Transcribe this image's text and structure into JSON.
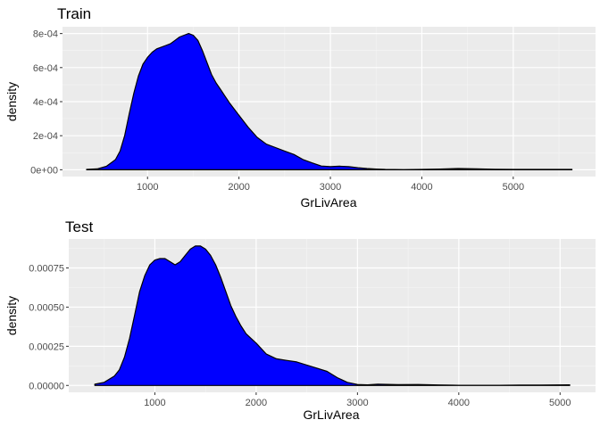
{
  "chart_data": [
    {
      "type": "area",
      "title": "Train",
      "xlabel": "GrLivArea",
      "ylabel": "density",
      "xlim": [
        70,
        5900
      ],
      "ylim": [
        -4e-05,
        0.00084
      ],
      "x_ticks": [
        1000,
        2000,
        3000,
        4000,
        5000
      ],
      "x_tick_labels": [
        "1000",
        "2000",
        "3000",
        "4000",
        "5000"
      ],
      "y_ticks": [
        0,
        0.0002,
        0.0004,
        0.0006,
        0.0008
      ],
      "y_tick_labels": [
        "0e+00",
        "2e-04",
        "4e-04",
        "6e-04",
        "8e-04"
      ],
      "grid": true,
      "fill_color": "#0000ff",
      "line_color": "#000000",
      "panel_color": "#ebebeb",
      "x": [
        334,
        450,
        550,
        650,
        700,
        750,
        800,
        850,
        900,
        950,
        1000,
        1050,
        1100,
        1150,
        1200,
        1250,
        1300,
        1350,
        1400,
        1450,
        1500,
        1550,
        1600,
        1650,
        1700,
        1750,
        1800,
        1850,
        1900,
        2000,
        2100,
        2200,
        2300,
        2400,
        2500,
        2600,
        2700,
        2800,
        2900,
        3000,
        3100,
        3200,
        3300,
        3400,
        3500,
        3600,
        3800,
        4000,
        4200,
        4400,
        4600,
        4800,
        5000,
        5200,
        5400,
        5642
      ],
      "y": [
        2e-06,
        5e-06,
        2e-05,
        6e-05,
        0.00011,
        0.0002,
        0.00033,
        0.00045,
        0.00055,
        0.00062,
        0.00066,
        0.00069,
        0.00071,
        0.00072,
        0.00073,
        0.00074,
        0.00076,
        0.00078,
        0.00079,
        0.0008,
        0.00079,
        0.00076,
        0.0007,
        0.00063,
        0.00056,
        0.00051,
        0.00047,
        0.00043,
        0.00039,
        0.00032,
        0.00025,
        0.00019,
        0.00015,
        0.00013,
        0.00011,
        9e-05,
        6e-05,
        4e-05,
        2.2e-05,
        1.8e-05,
        2.1e-05,
        1.8e-05,
        1.2e-05,
        7e-06,
        4e-06,
        2e-06,
        1e-06,
        2e-06,
        4e-06,
        7e-06,
        5e-06,
        3e-06,
        2e-06,
        2e-06,
        2e-06,
        2e-06
      ]
    },
    {
      "type": "area",
      "title": "Test",
      "xlabel": "GrLivArea",
      "ylabel": "density",
      "xlim": [
        150,
        5350
      ],
      "ylim": [
        -4.4e-05,
        0.000935
      ],
      "x_ticks": [
        1000,
        2000,
        3000,
        4000,
        5000
      ],
      "x_tick_labels": [
        "1000",
        "2000",
        "3000",
        "4000",
        "5000"
      ],
      "y_ticks": [
        0,
        0.00025,
        0.0005,
        0.00075
      ],
      "y_tick_labels": [
        "0.00000",
        "0.00025",
        "0.00050",
        "0.00075"
      ],
      "grid": true,
      "fill_color": "#0000ff",
      "line_color": "#000000",
      "panel_color": "#ebebeb",
      "x": [
        407,
        500,
        600,
        650,
        700,
        750,
        800,
        850,
        900,
        950,
        1000,
        1050,
        1100,
        1150,
        1200,
        1250,
        1300,
        1350,
        1400,
        1450,
        1500,
        1550,
        1600,
        1650,
        1700,
        1750,
        1800,
        1850,
        1900,
        1950,
        2000,
        2100,
        2200,
        2300,
        2400,
        2500,
        2600,
        2700,
        2750,
        2800,
        2900,
        3000,
        3100,
        3200,
        3400,
        3600,
        3800,
        4000,
        4200,
        4400,
        4600,
        4800,
        5095
      ],
      "y": [
        8e-06,
        2e-05,
        6e-05,
        0.0001,
        0.00018,
        0.0003,
        0.00045,
        0.0006,
        0.0007,
        0.00077,
        0.0008,
        0.00081,
        0.00081,
        0.00079,
        0.00077,
        0.00079,
        0.00083,
        0.00087,
        0.00089,
        0.00089,
        0.00087,
        0.00083,
        0.00077,
        0.00069,
        0.0006,
        0.00051,
        0.00044,
        0.00038,
        0.00033,
        0.0003,
        0.00027,
        0.0002,
        0.00017,
        0.00016,
        0.00015,
        0.00013,
        0.00011,
        9e-05,
        7e-05,
        5e-05,
        2e-05,
        6e-06,
        4e-06,
        8e-06,
        5e-06,
        6e-06,
        3e-06,
        1e-06,
        1e-06,
        1e-06,
        2e-06,
        2e-06,
        4e-06
      ]
    }
  ]
}
